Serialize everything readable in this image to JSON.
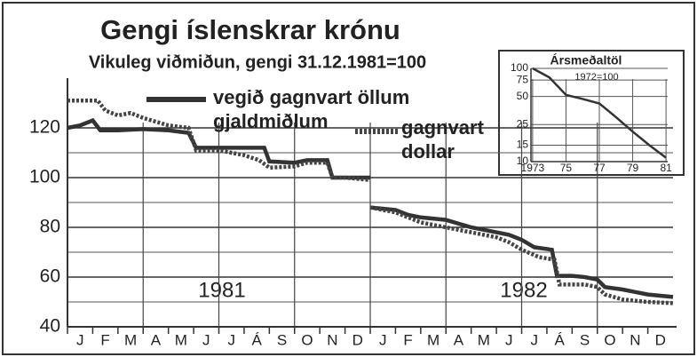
{
  "chart_data": [
    {
      "type": "line",
      "title": "Gengi íslenskrar krónu",
      "subtitle": "Vikuleg viðmiðun, gengi 31.12.1981=100",
      "annotations": [
        "1981",
        "1982"
      ],
      "xlim": [
        0,
        24
      ],
      "xticks": [
        {
          "value": 0.5,
          "label": "J"
        },
        {
          "value": 1.5,
          "label": "F"
        },
        {
          "value": 2.5,
          "label": "M"
        },
        {
          "value": 3.5,
          "label": "A"
        },
        {
          "value": 4.5,
          "label": "M"
        },
        {
          "value": 5.5,
          "label": "J"
        },
        {
          "value": 6.5,
          "label": "J"
        },
        {
          "value": 7.5,
          "label": "Á"
        },
        {
          "value": 8.5,
          "label": "S"
        },
        {
          "value": 9.5,
          "label": "O"
        },
        {
          "value": 10.5,
          "label": "N"
        },
        {
          "value": 11.5,
          "label": "D"
        },
        {
          "value": 12.5,
          "label": "J"
        },
        {
          "value": 13.5,
          "label": "F"
        },
        {
          "value": 14.5,
          "label": "M"
        },
        {
          "value": 15.5,
          "label": "A"
        },
        {
          "value": 16.5,
          "label": "M"
        },
        {
          "value": 17.5,
          "label": "J"
        },
        {
          "value": 18.5,
          "label": "J"
        },
        {
          "value": 19.5,
          "label": "Á"
        },
        {
          "value": 20.5,
          "label": "S"
        },
        {
          "value": 21.5,
          "label": "O"
        },
        {
          "value": 22.5,
          "label": "N"
        },
        {
          "value": 23.5,
          "label": "D"
        }
      ],
      "xgrid": [
        3,
        6,
        9,
        12,
        15,
        18,
        21
      ],
      "ylim": [
        40,
        140
      ],
      "yticks": [
        40,
        60,
        80,
        100,
        120
      ],
      "minor_yticks": [
        50,
        70,
        90,
        110
      ],
      "grid": true,
      "series": [
        {
          "name": "vegið gagnvart öllum gjaldmiðlum",
          "color": "#333333",
          "style": "solid",
          "x": [
            0,
            0.5,
            1,
            1.3,
            2,
            3,
            4,
            4.8,
            5.1,
            6,
            7,
            7.8,
            8,
            9,
            9.5,
            10.3,
            10.5,
            11,
            12,
            12,
            12,
            13,
            13.5,
            14,
            15,
            16,
            17,
            17.5,
            18,
            18.5,
            19.2,
            19.4,
            20,
            20.5,
            21,
            21.3,
            22,
            22.5,
            23,
            24
          ],
          "values": [
            120,
            121,
            123,
            119,
            119,
            119.5,
            119,
            118,
            112,
            112,
            112,
            112,
            106.5,
            106,
            107,
            107,
            100,
            100,
            100,
            null,
            88,
            87,
            85,
            84,
            83,
            80,
            78,
            77,
            75,
            72,
            71,
            60.5,
            60.5,
            60,
            59,
            56,
            55,
            54,
            53,
            52
          ]
        },
        {
          "name": "gagnvart dollar",
          "color": "#444444",
          "style": "dotted",
          "x": [
            0,
            1.2,
            1.5,
            2,
            2.5,
            3,
            4,
            4.8,
            5.1,
            6,
            7,
            7.6,
            8,
            9,
            9.5,
            10.3,
            10.5,
            11,
            12,
            12,
            12,
            13,
            14,
            15,
            16,
            17,
            17.5,
            18,
            18.7,
            19.3,
            19.5,
            20,
            20.5,
            21,
            21.3,
            22,
            23,
            24
          ],
          "values": [
            131,
            131,
            127,
            125,
            126,
            124,
            121,
            120,
            111,
            111,
            109,
            107,
            104,
            104.5,
            106,
            106,
            100,
            100,
            99,
            null,
            88,
            86,
            82,
            80,
            78,
            76,
            74,
            71,
            68,
            67,
            57,
            57,
            57,
            56,
            53,
            51,
            50,
            49.5
          ]
        }
      ]
    },
    {
      "type": "line",
      "title": "Ársmeðaltöl",
      "subtitle": "1972=100",
      "log_scale": true,
      "xlim": [
        1972.9,
        1981.1
      ],
      "xticks": [
        1973,
        {
          "value": 1975,
          "label": "75"
        },
        {
          "value": 1977,
          "label": "77"
        },
        {
          "value": 1979,
          "label": "79"
        },
        {
          "value": 1981,
          "label": "81"
        }
      ],
      "ylim": [
        10,
        100
      ],
      "yticks": [
        10,
        15,
        25,
        50,
        75,
        100
      ],
      "grid": true,
      "series": [
        {
          "color": "#333333",
          "x": [
            1973,
            1974,
            1975,
            1976,
            1977,
            1978,
            1979,
            1980,
            1981
          ],
          "values": [
            100,
            80,
            52,
            47,
            42,
            30,
            21,
            15,
            11
          ]
        }
      ]
    }
  ]
}
